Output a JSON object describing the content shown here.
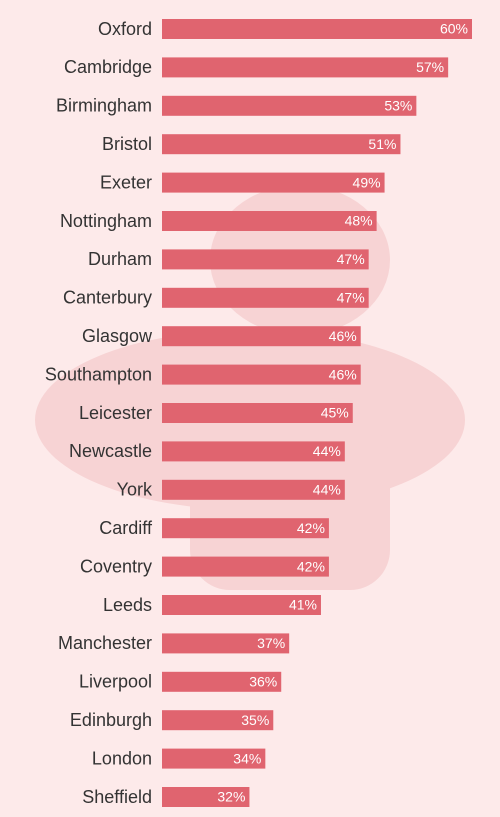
{
  "chart_data": {
    "type": "hbar",
    "categories": [
      "Oxford",
      "Cambridge",
      "Birmingham",
      "Bristol",
      "Exeter",
      "Nottingham",
      "Durham",
      "Canterbury",
      "Glasgow",
      "Southampton",
      "Leicester",
      "Newcastle",
      "York",
      "Cardiff",
      "Coventry",
      "Leeds",
      "Manchester",
      "Liverpool",
      "Edinburgh",
      "London",
      "Sheffield"
    ],
    "values": [
      60,
      57,
      53,
      51,
      49,
      48,
      47,
      47,
      46,
      46,
      45,
      44,
      44,
      42,
      42,
      41,
      37,
      36,
      35,
      34,
      32
    ],
    "value_labels": [
      "60%",
      "57%",
      "53%",
      "51%",
      "49%",
      "48%",
      "47%",
      "47%",
      "46%",
      "46%",
      "45%",
      "44%",
      "44%",
      "42%",
      "42%",
      "41%",
      "37%",
      "36%",
      "35%",
      "34%",
      "32%"
    ],
    "color": "#e0646f",
    "xlim": [
      21,
      60
    ]
  }
}
